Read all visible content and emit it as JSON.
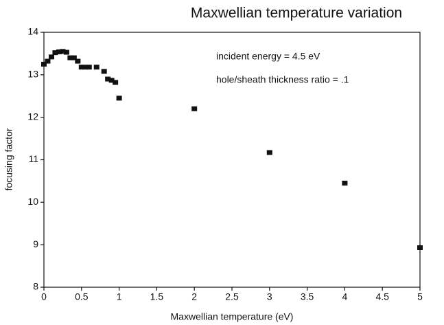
{
  "chart_data": {
    "type": "scatter",
    "title": "Maxwellian temperature variation",
    "x_label": "Maxwellian temperature (eV)",
    "y_label": "focusing factor",
    "annotations": [
      "incident energy = 4.5 eV",
      "hole/sheath thickness ratio = .1"
    ],
    "color": "#111111",
    "x": [
      0,
      0.05,
      0.1,
      0.15,
      0.2,
      0.25,
      0.3,
      0.35,
      0.4,
      0.45,
      0.5,
      0.55,
      0.6,
      0.7,
      0.8,
      0.85,
      0.9,
      0.95,
      1,
      2,
      3,
      4,
      5
    ],
    "values": [
      13.25,
      13.32,
      13.42,
      13.52,
      13.54,
      13.55,
      13.53,
      13.4,
      13.4,
      13.32,
      13.18,
      13.18,
      13.18,
      13.18,
      13.08,
      12.9,
      12.87,
      12.82,
      12.45,
      12.2,
      11.17,
      10.45,
      8.93
    ],
    "xlim": [
      0,
      5
    ],
    "xticks": [
      0,
      0.5,
      1,
      1.5,
      2,
      2.5,
      3,
      3.5,
      4,
      4.5,
      5
    ],
    "ylim": [
      8,
      14
    ],
    "yticks": [
      8,
      9,
      10,
      11,
      12,
      13,
      14
    ]
  }
}
